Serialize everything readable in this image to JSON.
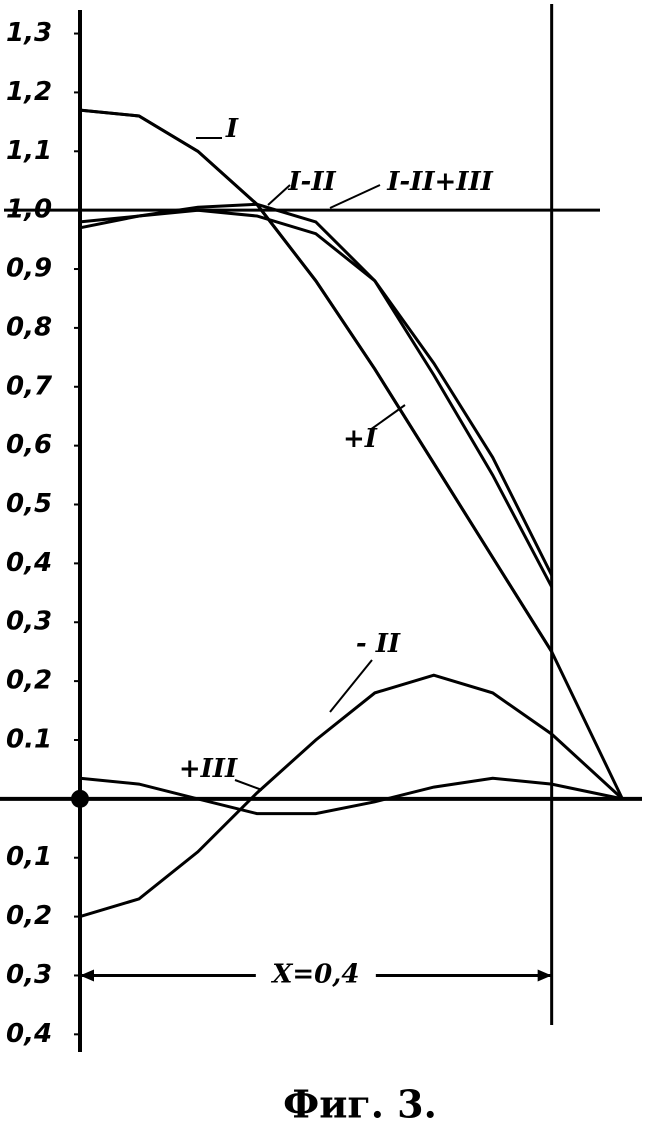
{
  "chart_data": {
    "type": "line",
    "caption": "Фиг. 3.",
    "x": [
      0,
      0.05,
      0.1,
      0.15,
      0.2,
      0.25,
      0.3,
      0.35,
      0.4,
      0.46
    ],
    "series": [
      {
        "name": "I",
        "color": "#000000",
        "values": [
          1.17,
          1.16,
          1.1,
          1.01,
          0.88,
          0.73,
          0.57,
          0.41,
          0.25,
          0
        ]
      },
      {
        "name": "- II",
        "color": "#000000",
        "values": [
          -0.2,
          -0.17,
          -0.09,
          0.01,
          0.1,
          0.18,
          0.21,
          0.18,
          0.11,
          0
        ]
      },
      {
        "name": "+III",
        "color": "#000000",
        "values": [
          0.035,
          0.025,
          0.0,
          -0.025,
          -0.025,
          -0.005,
          0.02,
          0.035,
          0.025,
          0
        ]
      },
      {
        "name": "I-II",
        "color": "#000000",
        "values": [
          0.97,
          0.99,
          1.005,
          1.01,
          0.98,
          0.88,
          0.72,
          0.55,
          0.36,
          null
        ]
      },
      {
        "name": "I-II+III",
        "color": "#000000",
        "values": [
          0.98,
          0.99,
          1.0,
          0.99,
          0.96,
          0.88,
          0.74,
          0.58,
          0.38,
          null
        ]
      },
      {
        "name": "+I",
        "color": "#000000",
        "values": [
          1.17,
          1.16,
          1.1,
          1.01,
          0.88,
          0.73,
          0.57,
          0.41,
          0.25,
          null
        ]
      }
    ],
    "xlim": [
      0,
      0.48
    ],
    "ylim": [
      -0.43,
      1.34
    ],
    "yticks": [
      {
        "value": 1.3,
        "label": "1,3"
      },
      {
        "value": 1.2,
        "label": "1,2"
      },
      {
        "value": 1.1,
        "label": "1,1"
      },
      {
        "value": 1.0,
        "label": "1,0"
      },
      {
        "value": 0.9,
        "label": "0,9"
      },
      {
        "value": 0.8,
        "label": "0,8"
      },
      {
        "value": 0.7,
        "label": "0,7"
      },
      {
        "value": 0.6,
        "label": "0,6"
      },
      {
        "value": 0.5,
        "label": "0,5"
      },
      {
        "value": 0.4,
        "label": "0,4"
      },
      {
        "value": 0.3,
        "label": "0,3"
      },
      {
        "value": 0.2,
        "label": "0,2"
      },
      {
        "value": 0.1,
        "label": "0.1"
      },
      {
        "value": -0.1,
        "label": "0,1"
      },
      {
        "value": -0.2,
        "label": "0,2"
      },
      {
        "value": -0.3,
        "label": "0,3"
      },
      {
        "value": -0.4,
        "label": "0,4"
      }
    ],
    "hline": 1.0,
    "vline": 0.4,
    "annotation": {
      "text": "X=0,4",
      "x": [
        0,
        0.4
      ],
      "y": -0.3
    }
  }
}
